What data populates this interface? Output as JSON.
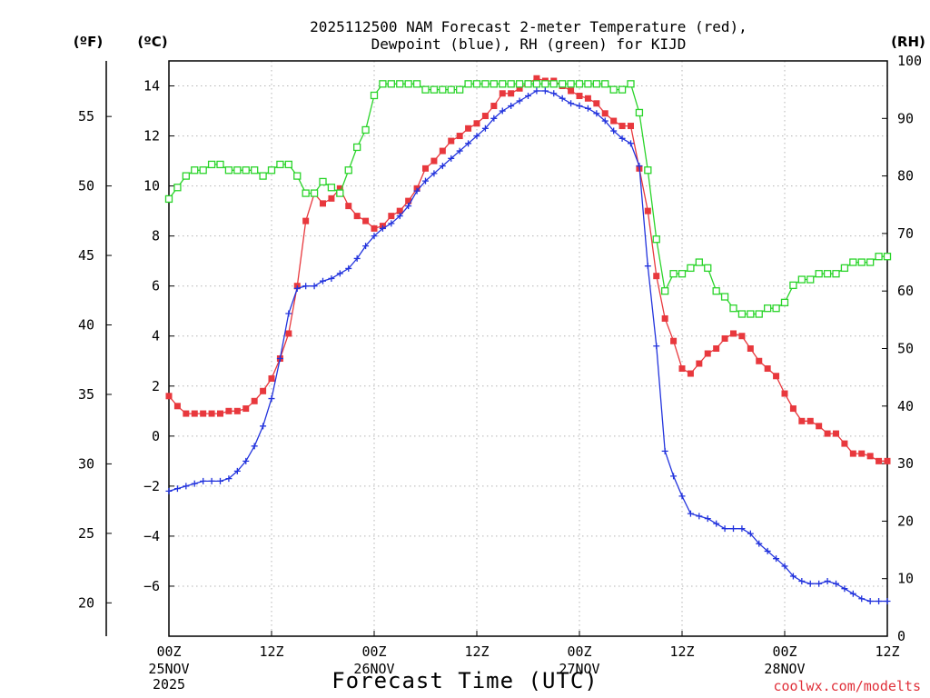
{
  "chart_data": {
    "type": "line",
    "title_line1": "2025112500 NAM Forecast 2-meter Temperature (red),",
    "title_line2": "Dewpoint (blue), RH (green) for KIJD",
    "unit_f": "(ºF)",
    "unit_c": "(ºC)",
    "unit_rh": "(RH)",
    "xlabel": "Forecast Time (UTC)",
    "credit": "coolwx.com/modelts",
    "x_range_hours": [
      0,
      84
    ],
    "ylim_c": [
      -8.0,
      15.0
    ],
    "ylim_rh": [
      0,
      100
    ],
    "ylim_f": [
      17.6,
      59.0
    ],
    "c_ticks": [
      "14",
      "12",
      "10",
      "8",
      "6",
      "4",
      "2",
      "0",
      "−2",
      "−4",
      "−6"
    ],
    "f_ticks": [
      "55",
      "50",
      "45",
      "40",
      "35",
      "30",
      "25",
      "20"
    ],
    "rh_ticks": [
      "100",
      "90",
      "80",
      "70",
      "60",
      "50",
      "40",
      "30",
      "20",
      "10",
      "0"
    ],
    "x_ticks": [
      {
        "hour": 0,
        "time": "00Z",
        "date": "25NOV",
        "year": "2025"
      },
      {
        "hour": 12,
        "time": "12Z",
        "date": "",
        "year": ""
      },
      {
        "hour": 24,
        "time": "00Z",
        "date": "26NOV",
        "year": ""
      },
      {
        "hour": 36,
        "time": "12Z",
        "date": "",
        "year": ""
      },
      {
        "hour": 48,
        "time": "00Z",
        "date": "27NOV",
        "year": ""
      },
      {
        "hour": 60,
        "time": "12Z",
        "date": "",
        "year": ""
      },
      {
        "hour": 72,
        "time": "00Z",
        "date": "28NOV",
        "year": ""
      },
      {
        "hour": 84,
        "time": "12Z",
        "date": "",
        "year": ""
      }
    ],
    "hours": [
      0,
      1,
      2,
      3,
      4,
      5,
      6,
      7,
      8,
      9,
      10,
      11,
      12,
      13,
      14,
      15,
      16,
      17,
      18,
      19,
      20,
      21,
      22,
      23,
      24,
      25,
      26,
      27,
      28,
      29,
      30,
      31,
      32,
      33,
      34,
      35,
      36,
      37,
      38,
      39,
      40,
      41,
      42,
      43,
      44,
      45,
      46,
      47,
      48,
      49,
      50,
      51,
      52,
      53,
      54,
      55,
      56,
      57,
      58,
      59,
      60,
      61,
      62,
      63,
      64,
      65,
      66,
      67,
      68,
      69,
      70,
      71,
      72,
      73,
      74,
      75,
      76,
      77,
      78,
      79,
      80,
      81,
      82,
      83,
      84
    ],
    "series": [
      {
        "name": "Temperature (°C)",
        "color": "#e8383d",
        "marker": "filled-square",
        "axis": "celsius",
        "values": [
          1.6,
          1.2,
          0.9,
          0.9,
          0.9,
          0.9,
          0.9,
          1.0,
          1.0,
          1.1,
          1.4,
          1.8,
          2.3,
          3.1,
          4.1,
          6.0,
          8.6,
          9.7,
          9.3,
          9.5,
          9.9,
          9.2,
          8.8,
          8.6,
          8.3,
          8.4,
          8.8,
          9.0,
          9.4,
          9.9,
          10.7,
          11.0,
          11.4,
          11.8,
          12.0,
          12.3,
          12.5,
          12.8,
          13.2,
          13.7,
          13.7,
          13.9,
          14.1,
          14.3,
          14.2,
          14.2,
          14.0,
          13.8,
          13.6,
          13.5,
          13.3,
          12.9,
          12.6,
          12.4,
          12.4,
          10.7,
          9.0,
          6.4,
          4.7,
          3.8,
          2.7,
          2.5,
          2.9,
          3.3,
          3.5,
          3.9,
          4.1,
          4.0,
          3.5,
          3.0,
          2.7,
          2.4,
          1.7,
          1.1,
          0.6,
          0.6,
          0.4,
          0.1,
          0.1,
          -0.3,
          -0.7,
          -0.7,
          -0.8,
          -1.0,
          -1.0
        ]
      },
      {
        "name": "Dewpoint (°C)",
        "color": "#2233dd",
        "marker": "plus",
        "axis": "celsius",
        "values": [
          -2.2,
          -2.1,
          -2.0,
          -1.9,
          -1.8,
          -1.8,
          -1.8,
          -1.7,
          -1.4,
          -1.0,
          -0.4,
          0.4,
          1.5,
          3.1,
          4.9,
          5.9,
          6.0,
          6.0,
          6.2,
          6.3,
          6.5,
          6.7,
          7.1,
          7.6,
          8.0,
          8.3,
          8.5,
          8.8,
          9.2,
          9.8,
          10.2,
          10.5,
          10.8,
          11.1,
          11.4,
          11.7,
          12.0,
          12.3,
          12.7,
          13.0,
          13.2,
          13.4,
          13.6,
          13.8,
          13.8,
          13.7,
          13.5,
          13.3,
          13.2,
          13.1,
          12.9,
          12.6,
          12.2,
          11.9,
          11.7,
          10.8,
          6.8,
          3.6,
          -0.6,
          -1.6,
          -2.4,
          -3.1,
          -3.2,
          -3.3,
          -3.5,
          -3.7,
          -3.7,
          -3.7,
          -3.9,
          -4.3,
          -4.6,
          -4.9,
          -5.2,
          -5.6,
          -5.8,
          -5.9,
          -5.9,
          -5.8,
          -5.9,
          -6.1,
          -6.3,
          -6.5,
          -6.6,
          -6.6,
          -6.6
        ]
      },
      {
        "name": "Relative Humidity (%)",
        "color": "#2ad42a",
        "marker": "open-square",
        "axis": "rh",
        "values": [
          76,
          78,
          80,
          81,
          81,
          82,
          82,
          81,
          81,
          81,
          81,
          80,
          81,
          82,
          82,
          80,
          77,
          77,
          79,
          78,
          77,
          81,
          85,
          88,
          94,
          96,
          96,
          96,
          96,
          96,
          95,
          95,
          95,
          95,
          95,
          96,
          96,
          96,
          96,
          96,
          96,
          96,
          96,
          96,
          96,
          96,
          96,
          96,
          96,
          96,
          96,
          96,
          95,
          95,
          96,
          91,
          81,
          69,
          60,
          63,
          63,
          64,
          65,
          64,
          60,
          59,
          57,
          56,
          56,
          56,
          57,
          57,
          58,
          61,
          62,
          62,
          63,
          63,
          63,
          64,
          65,
          65,
          65,
          66,
          66
        ]
      }
    ]
  }
}
